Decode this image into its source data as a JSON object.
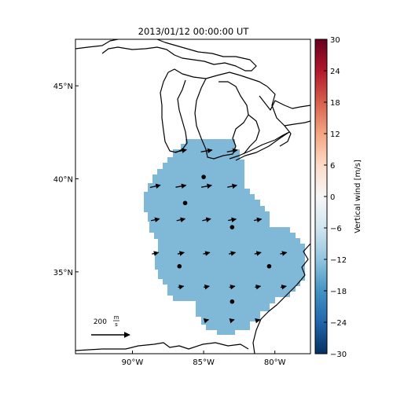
{
  "title": "2013/01/12 00:00:00 UT",
  "colorbar": {
    "label": "Vertical wind [m/s]",
    "range": [
      -30,
      30
    ],
    "ticks": [
      "30",
      "24",
      "18",
      "12",
      "6",
      "0",
      "−6",
      "−12",
      "−18",
      "−24",
      "−30"
    ],
    "tick_values": [
      30,
      24,
      18,
      12,
      6,
      0,
      -6,
      -12,
      -18,
      -24,
      -30
    ],
    "stops": [
      "#67001f",
      "#b2182b",
      "#d6604d",
      "#f4a582",
      "#fddbc7",
      "#f7f7f7",
      "#d1e5f0",
      "#92c5de",
      "#4393c3",
      "#2166ac",
      "#053061"
    ]
  },
  "map": {
    "lon_range": [
      -94,
      -77.5
    ],
    "lat_range": [
      30.6,
      47.5
    ],
    "lon_ticks": [
      {
        "value": -90,
        "label": "90°W"
      },
      {
        "value": -85,
        "label": "85°W"
      },
      {
        "value": -80,
        "label": "80°W"
      }
    ],
    "lat_ticks": [
      {
        "value": 45,
        "label": "45°N"
      },
      {
        "value": 40,
        "label": "40°N"
      },
      {
        "value": 35,
        "label": "35°N"
      }
    ],
    "field_color": "#80b8d8",
    "field_value": -12,
    "coast_color": "#000000"
  },
  "scale_arrow": {
    "label_value": "200",
    "label_unit_num": "m",
    "label_unit_den": "s"
  },
  "stations": [
    {
      "lon": -85.0,
      "lat": 40.1
    },
    {
      "lon": -86.3,
      "lat": 38.7
    },
    {
      "lon": -83.0,
      "lat": 37.4
    },
    {
      "lon": -86.7,
      "lat": 35.3
    },
    {
      "lon": -80.4,
      "lat": 35.3
    },
    {
      "lon": -83.0,
      "lat": 33.4
    }
  ],
  "wind_vectors": [
    {
      "lon": -86.6,
      "lat": 41.5,
      "u": 1.2,
      "v": 0.25
    },
    {
      "lon": -84.8,
      "lat": 41.5,
      "u": 1.2,
      "v": 0.2
    },
    {
      "lon": -83.0,
      "lat": 41.5,
      "u": 1.1,
      "v": 0.2
    },
    {
      "lon": -88.4,
      "lat": 39.6,
      "u": 1.1,
      "v": 0.25
    },
    {
      "lon": -86.6,
      "lat": 39.6,
      "u": 1.1,
      "v": 0.2
    },
    {
      "lon": -84.8,
      "lat": 39.6,
      "u": 1.1,
      "v": 0.2
    },
    {
      "lon": -83.0,
      "lat": 39.6,
      "u": 1.0,
      "v": 0.2
    },
    {
      "lon": -88.4,
      "lat": 37.8,
      "u": 0.9,
      "v": 0.2
    },
    {
      "lon": -86.6,
      "lat": 37.8,
      "u": 0.9,
      "v": 0.2
    },
    {
      "lon": -84.8,
      "lat": 37.8,
      "u": 0.9,
      "v": 0.2
    },
    {
      "lon": -83.0,
      "lat": 37.8,
      "u": 0.85,
      "v": 0.15
    },
    {
      "lon": -81.2,
      "lat": 37.8,
      "u": 0.8,
      "v": 0.15
    },
    {
      "lon": -88.4,
      "lat": 36.0,
      "u": 0.7,
      "v": 0.15
    },
    {
      "lon": -86.6,
      "lat": 36.0,
      "u": 0.7,
      "v": 0.15
    },
    {
      "lon": -84.8,
      "lat": 36.0,
      "u": 0.7,
      "v": 0.15
    },
    {
      "lon": -83.0,
      "lat": 36.0,
      "u": 0.7,
      "v": 0.15
    },
    {
      "lon": -81.2,
      "lat": 36.0,
      "u": 0.7,
      "v": 0.15
    },
    {
      "lon": -79.4,
      "lat": 36.0,
      "u": 0.7,
      "v": 0.15
    },
    {
      "lon": -86.6,
      "lat": 34.2,
      "u": 0.6,
      "v": 0.12
    },
    {
      "lon": -84.8,
      "lat": 34.2,
      "u": 0.6,
      "v": 0.12
    },
    {
      "lon": -83.0,
      "lat": 34.2,
      "u": 0.6,
      "v": 0.12
    },
    {
      "lon": -81.2,
      "lat": 34.2,
      "u": 0.6,
      "v": 0.12
    },
    {
      "lon": -79.4,
      "lat": 34.2,
      "u": 0.6,
      "v": 0.12
    },
    {
      "lon": -84.8,
      "lat": 32.4,
      "u": 0.45,
      "v": 0.12
    },
    {
      "lon": -83.0,
      "lat": 32.4,
      "u": 0.45,
      "v": 0.12
    },
    {
      "lon": -81.2,
      "lat": 32.4,
      "u": 0.45,
      "v": 0.12
    }
  ]
}
